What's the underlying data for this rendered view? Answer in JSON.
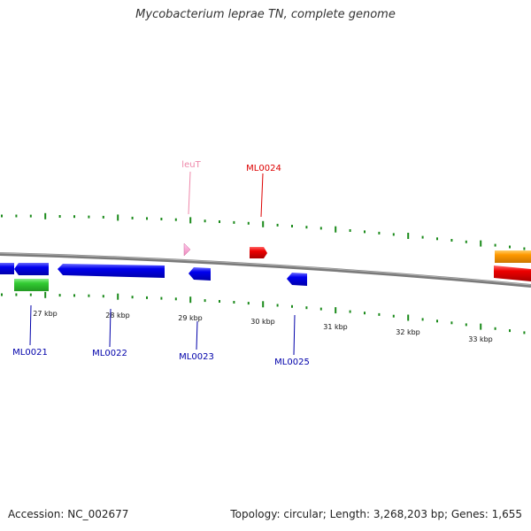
{
  "title": "Mycobacterium leprae TN, complete genome",
  "footer": {
    "accession": "Accession: NC_002677",
    "summary": "Topology: circular; Length: 3,268,203 bp; Genes: 1,655"
  },
  "colors": {
    "backbone": "#808080",
    "tick": "#1a8a1a",
    "forward_gene": "#0000ee",
    "trna": "#ee88bb",
    "red_gene": "#ee0000",
    "green_gene": "#33cc33",
    "orange_gene": "#ff9900"
  },
  "scale_labels": [
    "27 kbp",
    "28 kbp",
    "29 kbp",
    "30 kbp",
    "31 kbp",
    "32 kbp",
    "33 kbp"
  ],
  "gene_labels": [
    {
      "text": "ML0021",
      "color": "#0000aa"
    },
    {
      "text": "ML0022",
      "color": "#0000aa"
    },
    {
      "text": "ML0023",
      "color": "#0000aa"
    },
    {
      "text": "ML0025",
      "color": "#0000aa"
    },
    {
      "text": "leuT",
      "color": "#ee88aa"
    },
    {
      "text": "ML0024",
      "color": "#dd0000"
    }
  ]
}
